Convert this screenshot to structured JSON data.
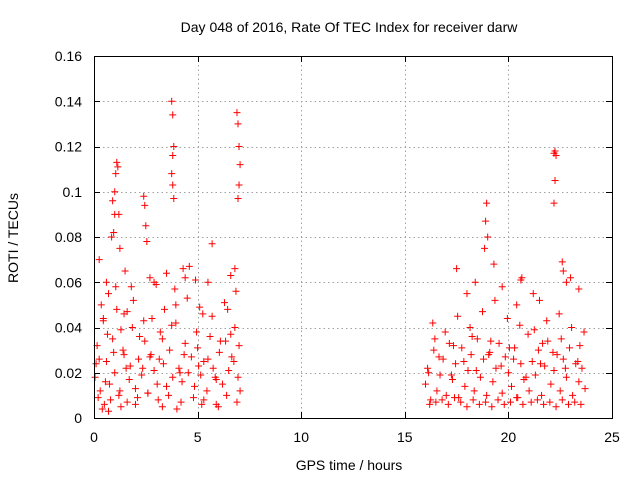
{
  "chart_data": {
    "type": "scatter",
    "title": "Day 048 of 2016, Rate Of TEC Index for receiver darw",
    "xlabel": "GPS time / hours",
    "ylabel": "ROTI / TECUs",
    "xlim": [
      0,
      25
    ],
    "ylim": [
      0,
      0.16
    ],
    "x_ticks": [
      0,
      5,
      10,
      15,
      20,
      25
    ],
    "y_ticks": [
      0,
      0.02,
      0.04,
      0.06,
      0.08,
      0.1,
      0.12,
      0.14,
      0.16
    ],
    "x_tick_labels": [
      "0",
      "5",
      "10",
      "15",
      "20",
      "25"
    ],
    "y_tick_labels": [
      "0",
      "0.02",
      "0.04",
      "0.06",
      "0.08",
      "0.1",
      "0.12",
      "0.14",
      "0.16"
    ],
    "grid": true,
    "marker": "+",
    "color": "#ff0000",
    "series": [
      {
        "name": "ROTI",
        "x": [
          0.05,
          0.15,
          0.3,
          0.45,
          0.6,
          0.75,
          0.9,
          1.0,
          1.1,
          1.25,
          1.4,
          1.55,
          1.7,
          1.85,
          2.0,
          2.15,
          2.3,
          2.45,
          2.6,
          2.75,
          2.9,
          3.05,
          3.2,
          3.35,
          3.5,
          3.65,
          3.8,
          3.95,
          4.1,
          4.25,
          4.4,
          4.55,
          4.7,
          4.85,
          5.0,
          5.15,
          5.3,
          5.45,
          5.6,
          5.75,
          5.9,
          6.05,
          6.2,
          6.35,
          6.5,
          6.65,
          6.8,
          6.95,
          7.05,
          0.2,
          0.5,
          0.8,
          1.2,
          1.6,
          2.1,
          2.6,
          3.1,
          3.6,
          4.2,
          4.8,
          5.3,
          5.9,
          6.4,
          6.9,
          0.35,
          0.7,
          1.05,
          1.45,
          1.9,
          2.4,
          2.9,
          3.4,
          3.9,
          4.5,
          5.1,
          5.7,
          6.3,
          6.85,
          0.25,
          0.65,
          0.95,
          1.3,
          1.75,
          2.2,
          2.7,
          3.3,
          3.75,
          4.35,
          4.95,
          5.5,
          6.1,
          6.6,
          7.0,
          0.85,
          0.9,
          1.0,
          1.05,
          1.1,
          1.15,
          1.2,
          1.25,
          0.95,
          1.0,
          2.4,
          2.45,
          2.5,
          2.55,
          3.75,
          3.8,
          3.85,
          3.8,
          3.75,
          3.8,
          3.85,
          4.3,
          4.4,
          5.7,
          6.9,
          6.95,
          7.0,
          7.05,
          7.0,
          6.95,
          0.25,
          0.6,
          0.7,
          1.5,
          1.8,
          2.7,
          3.0,
          3.5,
          4.6,
          4.9,
          5.5,
          6.6,
          6.8,
          0.4,
          1.3,
          2.0,
          3.3,
          4.0,
          5.2,
          6.0,
          0.1,
          0.55,
          1.45,
          2.35,
          3.15,
          4.15,
          5.05,
          5.85,
          6.75,
          0.45,
          1.6,
          2.8,
          3.95,
          5.25,
          6.45,
          16.0,
          16.1,
          16.25,
          16.4,
          16.55,
          16.7,
          16.85,
          17.0,
          17.15,
          17.3,
          17.45,
          17.6,
          17.75,
          17.9,
          18.05,
          18.2,
          18.35,
          18.5,
          18.65,
          18.8,
          18.95,
          19.1,
          19.25,
          19.4,
          19.55,
          19.7,
          19.85,
          20.0,
          20.15,
          20.3,
          20.45,
          20.6,
          20.75,
          21.0,
          21.15,
          21.3,
          21.45,
          21.6,
          21.75,
          21.9,
          22.05,
          22.2,
          22.35,
          22.5,
          22.65,
          22.8,
          22.95,
          23.1,
          23.25,
          23.4,
          23.55,
          23.7,
          16.2,
          16.5,
          16.8,
          17.1,
          17.4,
          17.7,
          18.0,
          18.3,
          18.6,
          18.9,
          19.2,
          19.5,
          19.8,
          20.1,
          20.4,
          20.7,
          21.1,
          21.4,
          21.7,
          22.0,
          22.3,
          22.6,
          22.9,
          23.2,
          23.5,
          16.35,
          16.95,
          17.55,
          18.15,
          18.75,
          19.35,
          19.95,
          20.55,
          21.25,
          21.85,
          22.45,
          23.05,
          23.65,
          17.5,
          18.0,
          18.4,
          18.9,
          18.95,
          19.0,
          18.85,
          19.3,
          19.7,
          20.4,
          20.6,
          20.65,
          21.2,
          21.5,
          22.2,
          22.25,
          22.3,
          22.25,
          22.2,
          22.6,
          22.65,
          22.8,
          23.0,
          23.4,
          16.15,
          16.65,
          17.25,
          17.85,
          18.45,
          19.05,
          19.65,
          20.25,
          20.85,
          21.55,
          22.15,
          22.75,
          23.35,
          16.45,
          17.35,
          18.25,
          19.15,
          20.05,
          20.95,
          21.65,
          22.55,
          23.45
        ],
        "y": [
          0.018,
          0.032,
          0.012,
          0.044,
          0.025,
          0.015,
          0.035,
          0.02,
          0.048,
          0.012,
          0.03,
          0.022,
          0.017,
          0.04,
          0.013,
          0.026,
          0.019,
          0.034,
          0.011,
          0.028,
          0.021,
          0.015,
          0.038,
          0.024,
          0.014,
          0.03,
          0.018,
          0.042,
          0.022,
          0.016,
          0.033,
          0.02,
          0.027,
          0.014,
          0.031,
          0.019,
          0.025,
          0.012,
          0.036,
          0.022,
          0.017,
          0.029,
          0.015,
          0.034,
          0.021,
          0.027,
          0.04,
          0.018,
          0.012,
          0.009,
          0.006,
          0.008,
          0.01,
          0.007,
          0.009,
          0.011,
          0.008,
          0.01,
          0.007,
          0.009,
          0.008,
          0.006,
          0.01,
          0.007,
          0.05,
          0.055,
          0.058,
          0.046,
          0.052,
          0.043,
          0.06,
          0.048,
          0.057,
          0.053,
          0.049,
          0.045,
          0.051,
          0.056,
          0.026,
          0.037,
          0.029,
          0.039,
          0.023,
          0.036,
          0.027,
          0.035,
          0.041,
          0.028,
          0.038,
          0.026,
          0.034,
          0.037,
          0.032,
          0.08,
          0.096,
          0.1,
          0.108,
          0.113,
          0.111,
          0.09,
          0.075,
          0.082,
          0.09,
          0.098,
          0.094,
          0.085,
          0.078,
          0.14,
          0.134,
          0.12,
          0.116,
          0.108,
          0.103,
          0.097,
          0.066,
          0.062,
          0.077,
          0.135,
          0.13,
          0.12,
          0.112,
          0.103,
          0.097,
          0.07,
          0.06,
          0.003,
          0.065,
          0.058,
          0.062,
          0.059,
          0.064,
          0.067,
          0.061,
          0.06,
          0.063,
          0.066,
          0.004,
          0.005,
          0.006,
          0.005,
          0.004,
          0.006,
          0.005,
          0.024,
          0.016,
          0.028,
          0.022,
          0.026,
          0.02,
          0.023,
          0.018,
          0.025,
          0.043,
          0.047,
          0.044,
          0.05,
          0.046,
          0.048,
          0.015,
          0.022,
          0.008,
          0.03,
          0.012,
          0.019,
          0.026,
          0.01,
          0.033,
          0.017,
          0.024,
          0.009,
          0.031,
          0.014,
          0.021,
          0.028,
          0.012,
          0.035,
          0.018,
          0.026,
          0.01,
          0.029,
          0.016,
          0.022,
          0.033,
          0.011,
          0.027,
          0.02,
          0.014,
          0.031,
          0.009,
          0.024,
          0.017,
          0.012,
          0.025,
          0.019,
          0.03,
          0.01,
          0.023,
          0.034,
          0.015,
          0.021,
          0.028,
          0.012,
          0.026,
          0.018,
          0.031,
          0.01,
          0.024,
          0.016,
          0.022,
          0.013,
          0.006,
          0.007,
          0.008,
          0.006,
          0.009,
          0.007,
          0.005,
          0.008,
          0.006,
          0.007,
          0.005,
          0.008,
          0.006,
          0.007,
          0.009,
          0.006,
          0.007,
          0.008,
          0.006,
          0.007,
          0.005,
          0.008,
          0.006,
          0.007,
          0.006,
          0.042,
          0.038,
          0.045,
          0.04,
          0.047,
          0.052,
          0.044,
          0.041,
          0.039,
          0.043,
          0.046,
          0.04,
          0.038,
          0.066,
          0.055,
          0.06,
          0.087,
          0.095,
          0.08,
          0.075,
          0.068,
          0.058,
          0.05,
          0.061,
          0.062,
          0.055,
          0.052,
          0.117,
          0.118,
          0.116,
          0.105,
          0.095,
          0.069,
          0.065,
          0.06,
          0.062,
          0.057,
          0.02,
          0.027,
          0.019,
          0.025,
          0.021,
          0.028,
          0.023,
          0.026,
          0.018,
          0.024,
          0.029,
          0.022,
          0.025,
          0.035,
          0.032,
          0.036,
          0.034,
          0.031,
          0.037,
          0.033,
          0.035,
          0.032
        ]
      }
    ]
  }
}
